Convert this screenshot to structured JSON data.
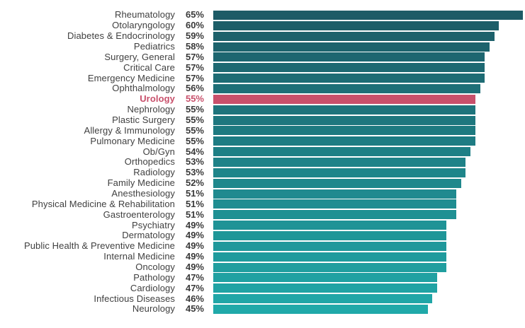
{
  "chart_data": {
    "type": "bar",
    "orientation": "horizontal",
    "title": "",
    "xlabel": "",
    "ylabel": "",
    "xlim": [
      0,
      65
    ],
    "grid": false,
    "legend": false,
    "value_suffix": "%",
    "categories": [
      "Rheumatology",
      "Otolaryngology",
      "Diabetes & Endocrinology",
      "Pediatrics",
      "Surgery, General",
      "Critical Care",
      "Emergency Medicine",
      "Ophthalmology",
      "Urology",
      "Nephrology",
      "Plastic Surgery",
      "Allergy & Immunology",
      "Pulmonary Medicine",
      "Ob/Gyn",
      "Orthopedics",
      "Radiology",
      "Family Medicine",
      "Anesthesiology",
      "Physical Medicine & Rehabilitation",
      "Gastroenterology",
      "Psychiatry",
      "Dermatology",
      "Public Health & Preventive Medicine",
      "Internal Medicine",
      "Oncology",
      "Pathology",
      "Cardiology",
      "Infectious Diseases",
      "Neurology"
    ],
    "values": [
      65,
      60,
      59,
      58,
      57,
      57,
      57,
      56,
      55,
      55,
      55,
      55,
      55,
      54,
      53,
      53,
      52,
      51,
      51,
      51,
      49,
      49,
      49,
      49,
      49,
      47,
      47,
      46,
      45
    ],
    "highlighted_category": "Urology",
    "colors": {
      "bar_gradient_top": "#1d5b66",
      "bar_gradient_bottom": "#20a9a9",
      "highlight": "#c8506b",
      "label_text": "#3f3f3f",
      "value_text": "#3a3a3a"
    }
  }
}
